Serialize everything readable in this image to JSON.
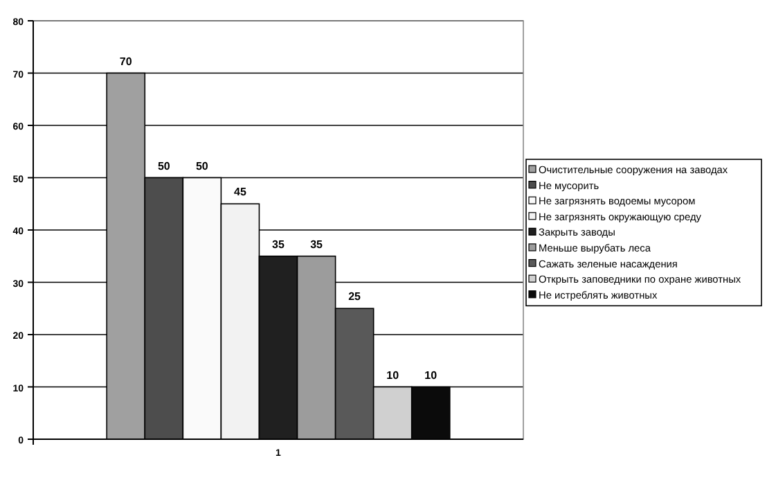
{
  "chart_data": {
    "type": "bar",
    "categories": [
      "1"
    ],
    "ylim": [
      0,
      80
    ],
    "yticks": [
      0,
      10,
      20,
      30,
      40,
      50,
      60,
      70,
      80
    ],
    "grid": "y",
    "legend": "right",
    "data_labels": true,
    "series": [
      {
        "name": "Очистительные сооружения на заводах",
        "color": "#a0a0a0",
        "values": [
          70
        ]
      },
      {
        "name": "Не мусорить",
        "color": "#4d4d4d",
        "values": [
          50
        ]
      },
      {
        "name": "Не загрязнять водоемы мусором",
        "color": "#fafafa",
        "values": [
          50
        ]
      },
      {
        "name": "Не загрязнять окружающую среду",
        "color": "#f2f2f2",
        "values": [
          45
        ]
      },
      {
        "name": "Закрыть заводы",
        "color": "#202020",
        "values": [
          35
        ]
      },
      {
        "name": "Меньше вырубать леса",
        "color": "#9c9c9c",
        "values": [
          35
        ]
      },
      {
        "name": "Сажать зеленые насаждения",
        "color": "#595959",
        "values": [
          25
        ]
      },
      {
        "name": "Открыть заповедники по охране животных",
        "color": "#d0d0d0",
        "values": [
          10
        ]
      },
      {
        "name": "Не истреблять животных",
        "color": "#0b0b0b",
        "values": [
          10
        ]
      }
    ]
  }
}
